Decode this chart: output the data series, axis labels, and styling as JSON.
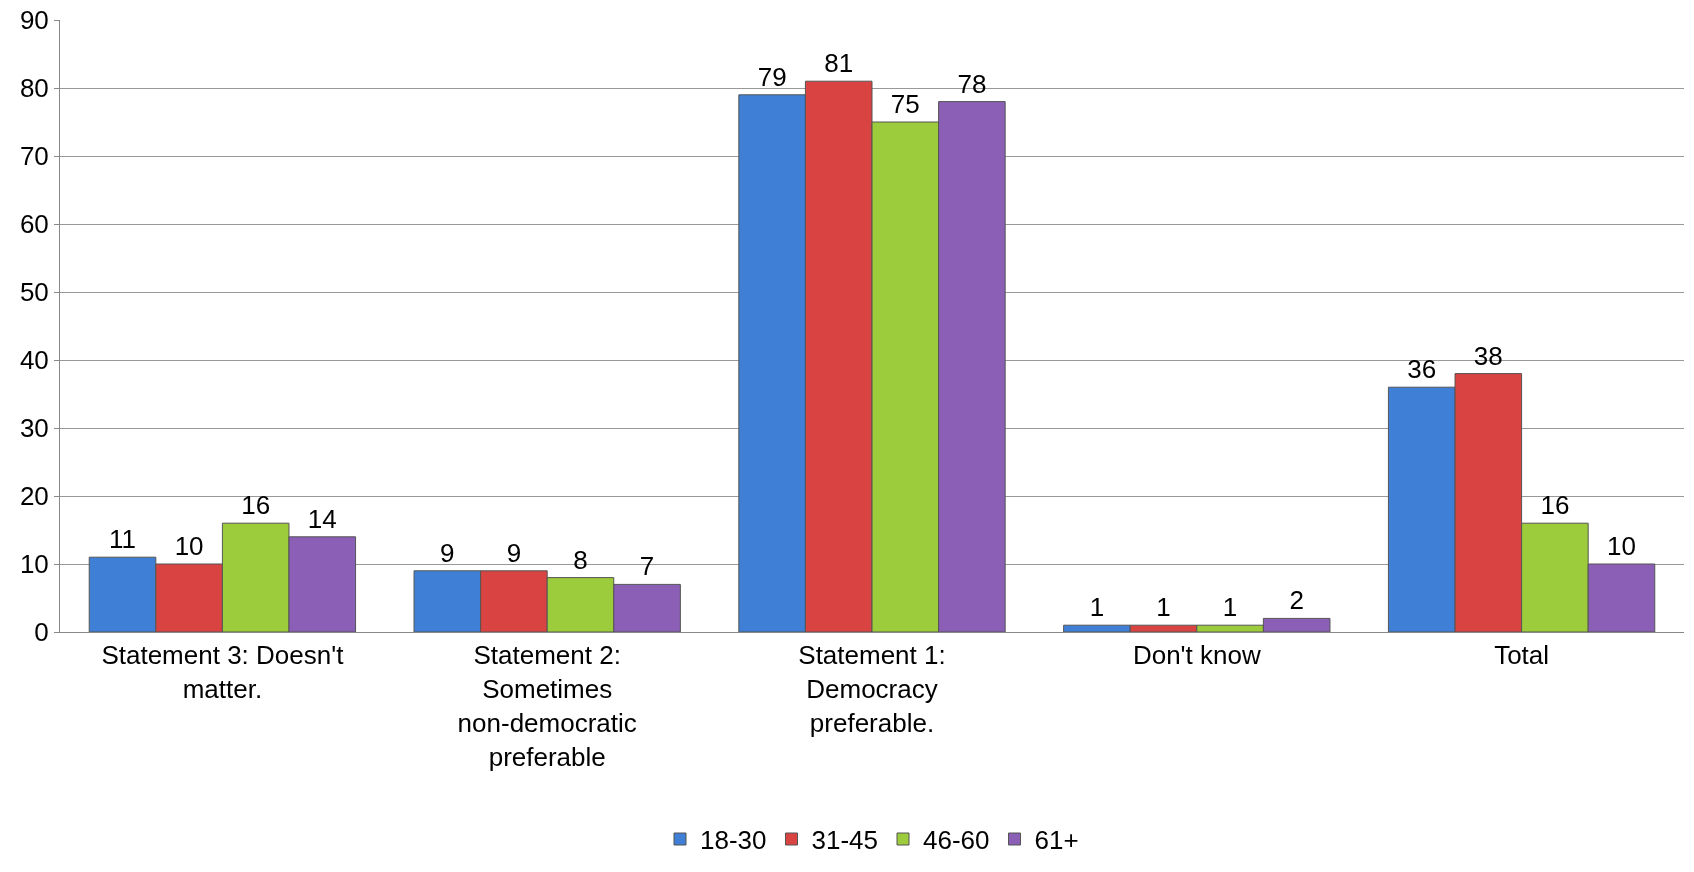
{
  "chart_data": {
    "type": "bar",
    "categories": [
      "Statement 3: Doesn't matter.",
      "Statement 2: Sometimes non-democratic preferable",
      "Statement 1: Democracy preferable.",
      "Don't know",
      "Total"
    ],
    "series": [
      {
        "name": "18-30",
        "color": "#3f80d6",
        "values": [
          11,
          9,
          79,
          1,
          36
        ]
      },
      {
        "name": "31-45",
        "color": "#d94341",
        "values": [
          10,
          9,
          81,
          1,
          38
        ]
      },
      {
        "name": "46-60",
        "color": "#9ccb3b",
        "values": [
          16,
          8,
          75,
          1,
          16
        ]
      },
      {
        "name": "61+",
        "color": "#8a5fb5",
        "values": [
          14,
          7,
          78,
          2,
          10
        ]
      }
    ],
    "ylim": [
      0,
      90
    ],
    "yticks": [
      0,
      10,
      20,
      30,
      40,
      50,
      60,
      70,
      80,
      90
    ],
    "grid": "y",
    "legend": "bottom",
    "data_labels": true
  }
}
